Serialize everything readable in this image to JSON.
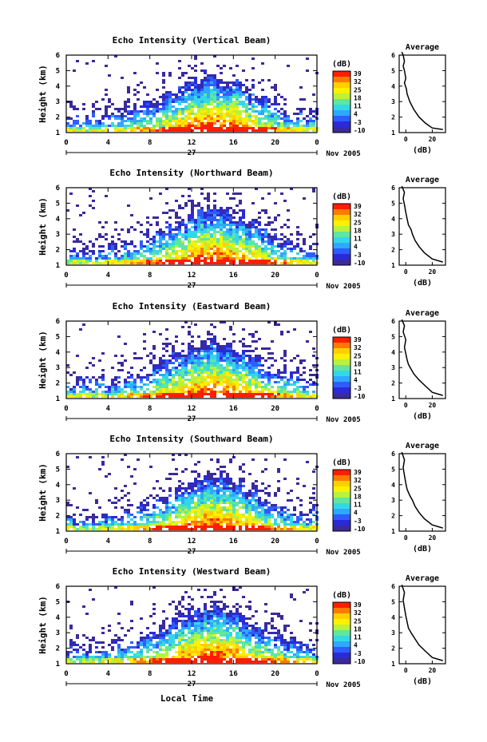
{
  "figure": {
    "date_label": "Nov 2005",
    "day_label": "27",
    "xlabel_bottom": "Local Time",
    "colorbar_unit": "(dB)",
    "colorbar_ticks": [
      "39",
      "32",
      "25",
      "18",
      "11",
      "4",
      "-3",
      "-10"
    ],
    "colorbar_colors": [
      "#ff1e00",
      "#ff7a00",
      "#ffd000",
      "#fff000",
      "#b8f23c",
      "#5fe6a0",
      "#33d8e6",
      "#2fa8ff",
      "#2f5cff",
      "#2a2ad8",
      "#3a2a9a"
    ]
  },
  "chart_data": [
    {
      "type": "heatmap",
      "title": "Echo Intensity (Vertical Beam)",
      "ylabel": "Height (km)",
      "x_ticks": [
        "0",
        "4",
        "8",
        "12",
        "16",
        "20",
        "0"
      ],
      "xlim": [
        0,
        24
      ],
      "y_ticks": [
        "1",
        "2",
        "3",
        "4",
        "5",
        "6"
      ],
      "ylim": [
        1,
        6
      ],
      "colorbar": {
        "label": "(dB)",
        "range": [
          -10,
          39
        ]
      },
      "average_profile": {
        "title": "Average",
        "xlabel": "(dB)",
        "x_ticks": [
          "0",
          "20"
        ],
        "xlim": [
          -5,
          30
        ],
        "y_ticks": [
          "1",
          "2",
          "3",
          "4",
          "5",
          "6"
        ],
        "ylim": [
          1,
          6
        ],
        "x": [
          28,
          20,
          15,
          10,
          6,
          3,
          1,
          0.5,
          -1,
          0,
          -1,
          -2,
          -1,
          -2,
          -3
        ],
        "y": [
          1.2,
          1.3,
          1.6,
          2.0,
          2.5,
          3.0,
          3.5,
          3.8,
          4.2,
          4.5,
          5.0,
          5.3,
          5.6,
          6.0,
          6.2
        ]
      }
    },
    {
      "type": "heatmap",
      "title": "Echo Intensity (Northward Beam)",
      "ylabel": "Height (km)",
      "x_ticks": [
        "0",
        "4",
        "8",
        "12",
        "16",
        "20",
        "0"
      ],
      "xlim": [
        0,
        24
      ],
      "y_ticks": [
        "1",
        "2",
        "3",
        "4",
        "5",
        "6"
      ],
      "ylim": [
        1,
        6
      ],
      "colorbar": {
        "label": "(dB)",
        "range": [
          -10,
          39
        ]
      },
      "average_profile": {
        "title": "Average",
        "xlabel": "(dB)",
        "x_ticks": [
          "0",
          "20"
        ],
        "xlim": [
          -5,
          30
        ],
        "y_ticks": [
          "1",
          "2",
          "3",
          "4",
          "5",
          "6"
        ],
        "ylim": [
          1,
          6
        ],
        "x": [
          28,
          20,
          14,
          10,
          7,
          5,
          4,
          2,
          1,
          0,
          -1,
          -2,
          -1,
          -3
        ],
        "y": [
          1.2,
          1.4,
          1.8,
          2.2,
          2.6,
          3.0,
          3.3,
          3.6,
          4.0,
          4.4,
          4.9,
          5.3,
          5.7,
          6.1
        ]
      }
    },
    {
      "type": "heatmap",
      "title": "Echo Intensity (Eastward Beam)",
      "ylabel": "Height (km)",
      "x_ticks": [
        "0",
        "4",
        "8",
        "12",
        "16",
        "20",
        "0"
      ],
      "xlim": [
        0,
        24
      ],
      "y_ticks": [
        "1",
        "2",
        "3",
        "4",
        "5",
        "6"
      ],
      "ylim": [
        1,
        6
      ],
      "colorbar": {
        "label": "(dB)",
        "range": [
          -10,
          39
        ]
      },
      "average_profile": {
        "title": "Average",
        "xlabel": "(dB)",
        "x_ticks": [
          "0",
          "20"
        ],
        "xlim": [
          -5,
          30
        ],
        "y_ticks": [
          "1",
          "2",
          "3",
          "4",
          "5",
          "6"
        ],
        "ylim": [
          1,
          6
        ],
        "x": [
          28,
          20,
          15,
          10,
          6,
          4,
          2,
          1,
          0,
          -1,
          0,
          -2,
          -1,
          -3
        ],
        "y": [
          1.2,
          1.4,
          1.8,
          2.2,
          2.6,
          2.9,
          3.2,
          3.5,
          3.9,
          4.3,
          4.8,
          5.3,
          5.7,
          6.1
        ]
      }
    },
    {
      "type": "heatmap",
      "title": "Echo Intensity (Southward Beam)",
      "ylabel": "Height (km)",
      "x_ticks": [
        "0",
        "4",
        "8",
        "12",
        "16",
        "20",
        "0"
      ],
      "xlim": [
        0,
        24
      ],
      "y_ticks": [
        "1",
        "2",
        "3",
        "4",
        "5",
        "6"
      ],
      "ylim": [
        1,
        6
      ],
      "colorbar": {
        "label": "(dB)",
        "range": [
          -10,
          39
        ]
      },
      "average_profile": {
        "title": "Average",
        "xlabel": "(dB)",
        "x_ticks": [
          "0",
          "20"
        ],
        "xlim": [
          -5,
          30
        ],
        "y_ticks": [
          "1",
          "2",
          "3",
          "4",
          "5",
          "6"
        ],
        "ylim": [
          1,
          6
        ],
        "x": [
          28,
          20,
          14,
          10,
          7,
          5,
          3,
          1,
          0,
          -1,
          -2,
          -1,
          -3
        ],
        "y": [
          1.2,
          1.4,
          1.8,
          2.2,
          2.6,
          3.0,
          3.3,
          3.7,
          4.1,
          4.6,
          5.1,
          5.6,
          6.1
        ]
      }
    },
    {
      "type": "heatmap",
      "title": "Echo Intensity (Westward Beam)",
      "ylabel": "Height (km)",
      "x_ticks": [
        "0",
        "4",
        "8",
        "12",
        "16",
        "20",
        "0"
      ],
      "xlim": [
        0,
        24
      ],
      "y_ticks": [
        "1",
        "2",
        "3",
        "4",
        "5",
        "6"
      ],
      "ylim": [
        1,
        6
      ],
      "colorbar": {
        "label": "(dB)",
        "range": [
          -10,
          39
        ]
      },
      "average_profile": {
        "title": "Average",
        "xlabel": "(dB)",
        "x_ticks": [
          "0",
          "20"
        ],
        "xlim": [
          -5,
          30
        ],
        "y_ticks": [
          "1",
          "2",
          "3",
          "4",
          "5",
          "6"
        ],
        "ylim": [
          1,
          6
        ],
        "x": [
          28,
          20,
          15,
          10,
          7,
          4,
          2,
          1,
          0,
          -1,
          -2,
          -1,
          -3
        ],
        "y": [
          1.2,
          1.4,
          1.8,
          2.2,
          2.6,
          3.0,
          3.3,
          3.7,
          4.1,
          4.6,
          5.1,
          5.6,
          6.1
        ]
      }
    }
  ]
}
